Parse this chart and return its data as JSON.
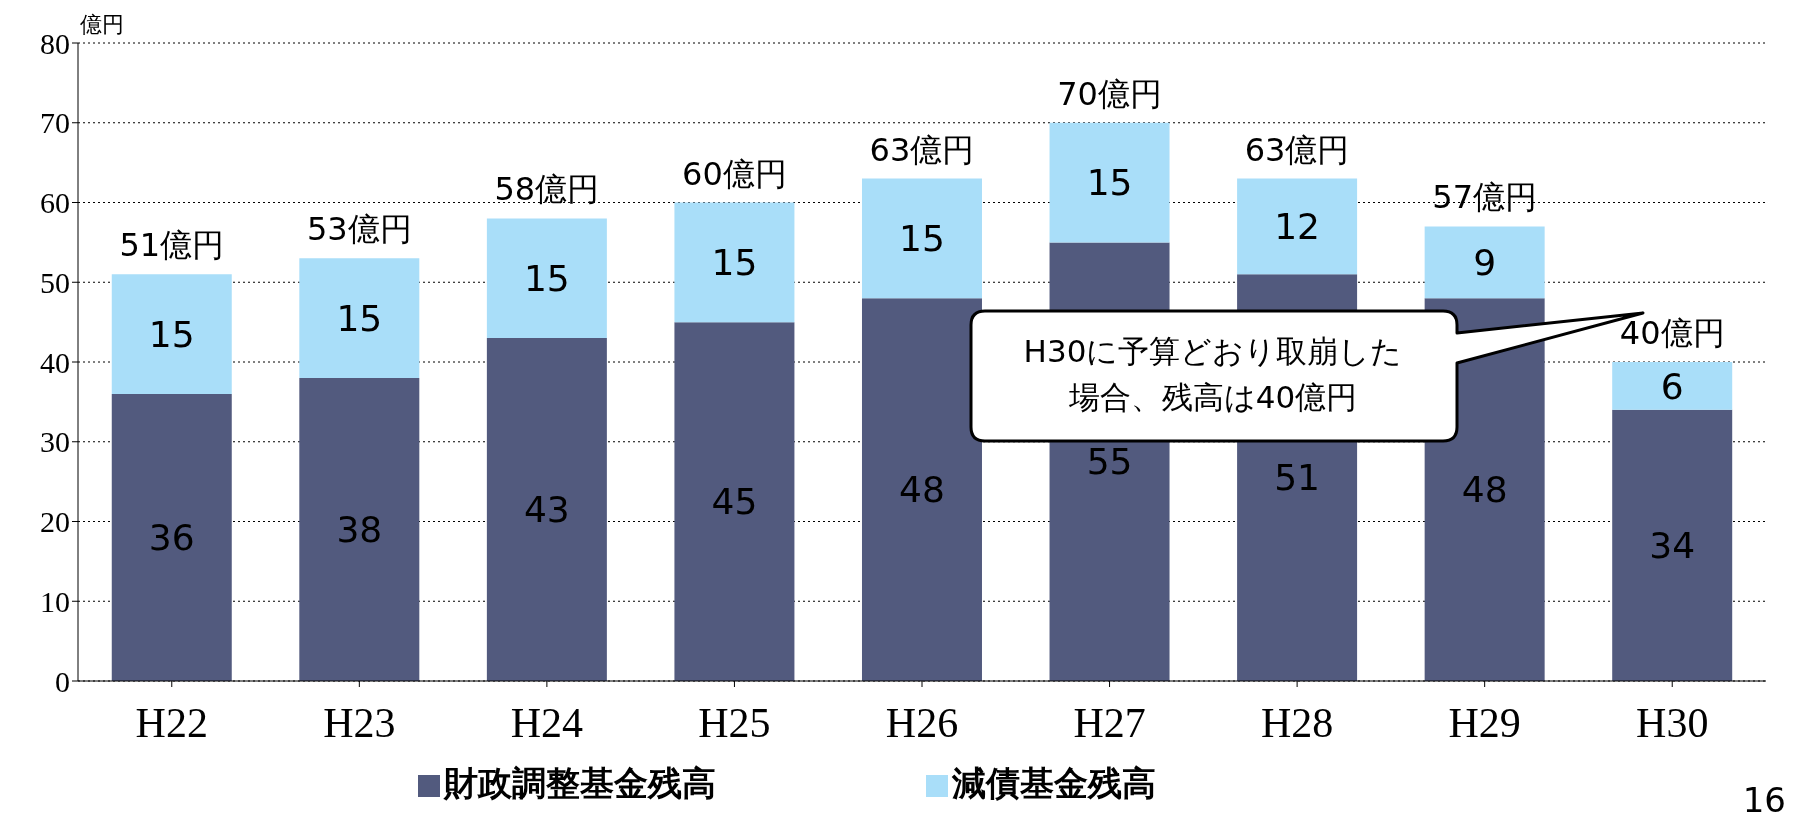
{
  "chart_data": {
    "type": "bar",
    "stacked": true,
    "ylabel": "億円",
    "categories": [
      "H22",
      "H23",
      "H24",
      "H25",
      "H26",
      "H27",
      "H28",
      "H29",
      "H30"
    ],
    "series": [
      {
        "name": "財政調整基金残高",
        "color": "#525a7e",
        "values": [
          36,
          38,
          43,
          45,
          48,
          55,
          51,
          48,
          34
        ]
      },
      {
        "name": "減債基金残高",
        "color": "#a9def9",
        "values": [
          15,
          15,
          15,
          15,
          15,
          15,
          12,
          9,
          6
        ]
      }
    ],
    "totals": [
      "51億円",
      "53億円",
      "58億円",
      "60億円",
      "63億円",
      "70億円",
      "63億円",
      "57億円",
      "40億円"
    ],
    "data_labels": true,
    "ylim": [
      0,
      80
    ],
    "yticks": [
      0,
      10,
      20,
      30,
      40,
      50,
      60,
      70,
      80
    ],
    "grid": "y",
    "legend": "bottom",
    "annotations": [
      "H30に予算どおり取崩した場合、残高は40億円",
      "16"
    ]
  }
}
